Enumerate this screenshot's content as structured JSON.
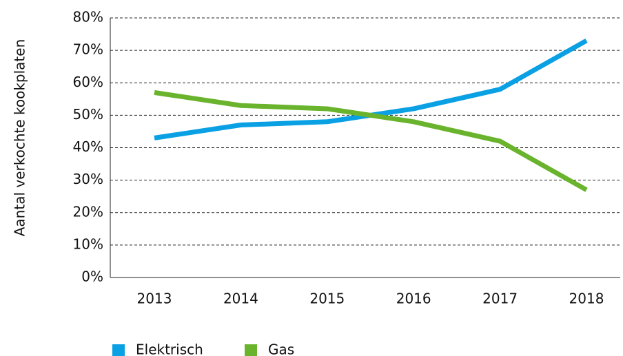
{
  "chart_data": {
    "type": "line",
    "y_label": "Aantal verkochte kookplaten",
    "categories": [
      "2013",
      "2014",
      "2015",
      "2016",
      "2017",
      "2018"
    ],
    "series": [
      {
        "name": "Elektrisch",
        "color": "#0aa0e4",
        "values": [
          43,
          47,
          48,
          52,
          58,
          73
        ]
      },
      {
        "name": "Gas",
        "color": "#6ab42d",
        "values": [
          57,
          53,
          52,
          48,
          42,
          27
        ]
      }
    ],
    "ylim": [
      0,
      80
    ],
    "yticks": [
      {
        "value": 0,
        "label": "0%"
      },
      {
        "value": 10,
        "label": "10%"
      },
      {
        "value": 20,
        "label": "20%"
      },
      {
        "value": 30,
        "label": "30%"
      },
      {
        "value": 40,
        "label": "40%"
      },
      {
        "value": 50,
        "label": "50%"
      },
      {
        "value": 60,
        "label": "60%"
      },
      {
        "value": 70,
        "label": "70%"
      },
      {
        "value": 80,
        "label": "80%"
      }
    ],
    "grid": true
  }
}
